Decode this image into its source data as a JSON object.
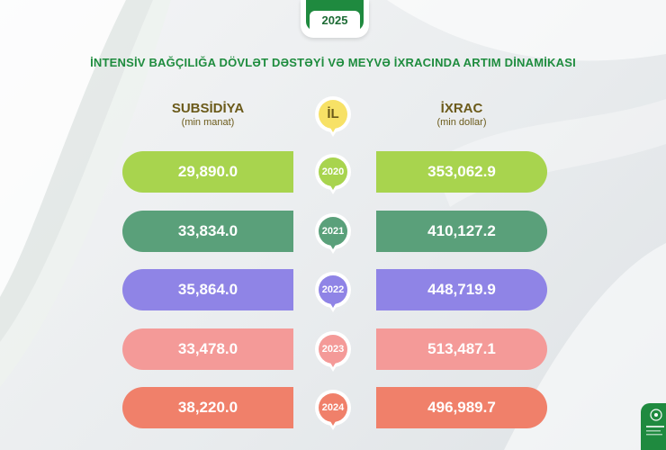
{
  "header": {
    "year": "2025",
    "title": "İNTENSİV BAĞÇILIĞA DÖVLƏT DƏSTƏYİ VƏ MEYVƏ İXRACINDA ARTIM DİNAMİKASI"
  },
  "columns": {
    "left_title": "SUBSİDİYA",
    "left_unit": "(min manat)",
    "middle_title": "İL",
    "right_title": "İXRAC",
    "right_unit": "(min dollar)"
  },
  "colors": {
    "header": "#f7e166",
    "rows": [
      "#a8d44e",
      "#5aa07a",
      "#8f84e6",
      "#f49a98",
      "#f0806a"
    ],
    "brand": "#1f8a3f"
  },
  "logo_icon": "emblem-icon",
  "chart_data": {
    "type": "table",
    "rows": [
      {
        "year": "2020",
        "subsidy": "29,890.0",
        "export": "353,062.9"
      },
      {
        "year": "2021",
        "subsidy": "33,834.0",
        "export": "410,127.2"
      },
      {
        "year": "2022",
        "subsidy": "35,864.0",
        "export": "448,719.9"
      },
      {
        "year": "2023",
        "subsidy": "33,478.0",
        "export": "513,487.1"
      },
      {
        "year": "2024",
        "subsidy": "38,220.0",
        "export": "496,989.7"
      }
    ]
  }
}
